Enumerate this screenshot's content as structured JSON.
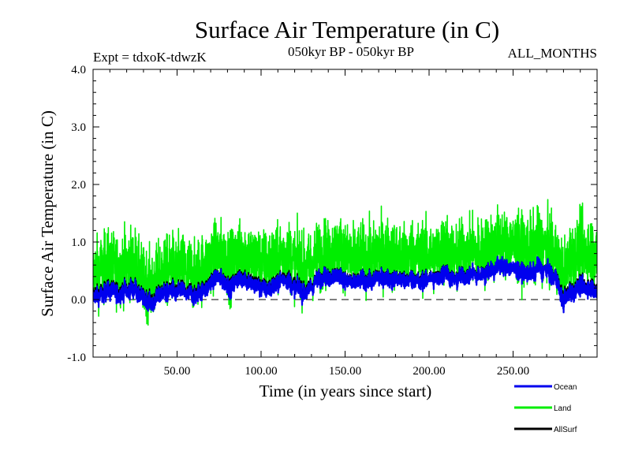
{
  "chart_data": {
    "type": "line",
    "title": "Surface Air Temperature (in C)",
    "subtitle_left": "Expt = tdxoK-tdwzK",
    "subtitle_center": "050kyr BP - 050kyr BP",
    "subtitle_right": "ALL_MONTHS",
    "xlabel": "Time (in years since start)",
    "ylabel": "Surface Air Temperature (in C)",
    "xlim": [
      0,
      300
    ],
    "ylim": [
      -1.0,
      4.0
    ],
    "x_ticks": [
      50,
      100,
      150,
      200,
      250
    ],
    "x_tick_labels": [
      "50.00",
      "100.00",
      "150.00",
      "200.00",
      "250.00"
    ],
    "y_ticks": [
      -1.0,
      0.0,
      1.0,
      2.0,
      3.0,
      4.0
    ],
    "y_tick_labels": [
      "-1.0",
      "0.0",
      "1.0",
      "2.0",
      "3.0",
      "4.0"
    ],
    "zero_line": {
      "y": 0.0,
      "style": "dashed"
    },
    "legend_position": "bottom-right",
    "series": [
      {
        "name": "Land",
        "color": "#00ee00",
        "x_start": 0,
        "x_step": 5,
        "values": [
          0.45,
          0.55,
          0.6,
          0.5,
          0.65,
          0.6,
          0.35,
          0.25,
          0.45,
          0.55,
          0.5,
          0.6,
          0.45,
          0.55,
          0.7,
          0.75,
          0.6,
          0.7,
          0.8,
          0.75,
          0.65,
          0.6,
          0.7,
          0.8,
          0.65,
          0.55,
          0.65,
          0.75,
          0.8,
          0.85,
          0.8,
          0.7,
          0.75,
          0.7,
          0.85,
          0.8,
          0.75,
          0.7,
          0.8,
          0.75,
          0.75,
          0.8,
          0.85,
          0.75,
          0.8,
          0.85,
          0.8,
          0.9,
          0.95,
          1.0,
          0.95,
          0.9,
          0.85,
          0.95,
          0.9,
          0.8,
          0.45,
          0.75,
          0.85,
          0.8,
          0.75
        ]
      },
      {
        "name": "Ocean",
        "color": "#0000ee",
        "x_start": 0,
        "x_step": 5,
        "values": [
          0.05,
          0.1,
          0.15,
          0.1,
          0.18,
          0.15,
          0.05,
          -0.05,
          0.1,
          0.15,
          0.12,
          0.18,
          0.1,
          0.15,
          0.3,
          0.35,
          0.2,
          0.3,
          0.35,
          0.3,
          0.2,
          0.15,
          0.3,
          0.35,
          0.2,
          0.12,
          0.25,
          0.35,
          0.4,
          0.42,
          0.35,
          0.3,
          0.35,
          0.3,
          0.4,
          0.35,
          0.35,
          0.3,
          0.35,
          0.3,
          0.35,
          0.4,
          0.42,
          0.38,
          0.4,
          0.45,
          0.4,
          0.5,
          0.55,
          0.6,
          0.55,
          0.5,
          0.45,
          0.55,
          0.5,
          0.45,
          0.0,
          0.15,
          0.2,
          0.15,
          0.15
        ]
      },
      {
        "name": "AllSurf",
        "color": "#000000",
        "x_start": 0,
        "x_step": 5,
        "values": [
          0.12,
          0.18,
          0.22,
          0.18,
          0.25,
          0.22,
          0.1,
          0.02,
          0.16,
          0.22,
          0.2,
          0.25,
          0.18,
          0.22,
          0.38,
          0.42,
          0.28,
          0.38,
          0.45,
          0.4,
          0.28,
          0.22,
          0.38,
          0.45,
          0.3,
          0.2,
          0.32,
          0.42,
          0.48,
          0.5,
          0.42,
          0.38,
          0.42,
          0.38,
          0.48,
          0.42,
          0.42,
          0.38,
          0.42,
          0.38,
          0.42,
          0.48,
          0.5,
          0.45,
          0.48,
          0.52,
          0.48,
          0.58,
          0.62,
          0.68,
          0.62,
          0.58,
          0.52,
          0.62,
          0.58,
          0.52,
          0.08,
          0.22,
          0.28,
          0.22,
          0.22
        ]
      }
    ]
  }
}
